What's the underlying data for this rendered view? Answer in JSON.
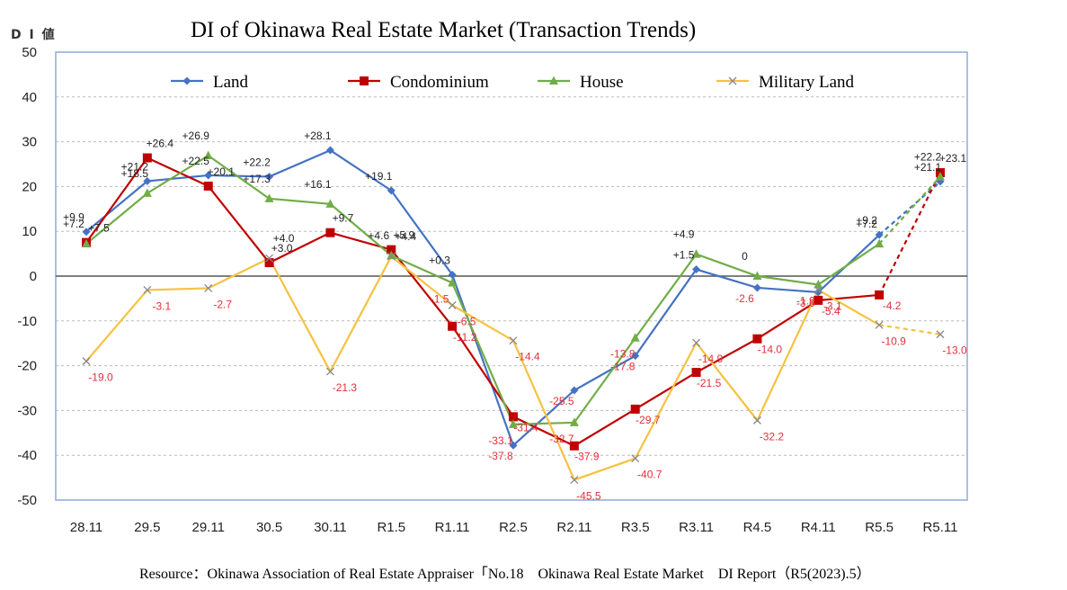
{
  "chart_data": {
    "type": "line",
    "title": "DI of Okinawa Real Estate Market (Transaction Trends)",
    "ylabel": "D I 値",
    "xlabel": "",
    "ylim": [
      -50,
      50
    ],
    "yticks": [
      50,
      40,
      30,
      20,
      10,
      0,
      -10,
      -20,
      -30,
      -40,
      -50
    ],
    "categories": [
      "28.11",
      "29.5",
      "29.11",
      "30.5",
      "30.11",
      "R1.5",
      "R1.11",
      "R2.5",
      "R2.11",
      "R3.5",
      "R3.11",
      "R4.5",
      "R4.11",
      "R5.5",
      "R5.11"
    ],
    "grid": "horizontal dashed",
    "legend_position": "top",
    "series": [
      {
        "name": "Land",
        "color": "#4472c4",
        "marker": "diamond",
        "values": [
          9.9,
          21.2,
          22.5,
          22.2,
          28.1,
          19.1,
          0.3,
          -37.8,
          -25.5,
          -17.8,
          1.5,
          -2.6,
          -3.6,
          9.2,
          21.1
        ],
        "labels": [
          "+9.9",
          "+21.2",
          "+22.5",
          "+22.2",
          "+28.1",
          "+19.1",
          "+0.3",
          "-37.8",
          "-25.5",
          "-17.8",
          "+1.5",
          "-2.6",
          "-3.6",
          "+9.2",
          "+21.1"
        ],
        "forecast_last": true
      },
      {
        "name": "Condominium",
        "color": "#c00000",
        "marker": "square",
        "values": [
          7.5,
          26.4,
          20.1,
          3.0,
          9.7,
          5.9,
          -11.2,
          -31.4,
          -37.9,
          -29.7,
          -21.5,
          -14.0,
          -5.4,
          -4.2,
          23.1
        ],
        "labels": [
          "+7.5",
          "+26.4",
          "+20.1",
          "+3.0",
          "+9.7",
          "+5.9",
          "-11.2",
          "-31.4",
          "-37.9",
          "-29.7",
          "-21.5",
          "-14.0",
          "-5.4",
          "-4.2",
          "+23.1"
        ],
        "forecast_last": true
      },
      {
        "name": "House",
        "color": "#70ad47",
        "marker": "triangle",
        "values": [
          7.2,
          18.5,
          26.9,
          17.3,
          16.1,
          4.6,
          -1.5,
          -33.1,
          -32.7,
          -13.8,
          4.9,
          0,
          -1.9,
          7.2,
          22.2
        ],
        "labels": [
          "+7.2",
          "+18.5",
          "+26.9",
          "+17.3",
          "+16.1",
          "+4.6",
          "-1.5",
          "-33.1",
          "-32.7",
          "-13.8",
          "+4.9",
          "0",
          "-1.9",
          "+7.2",
          "+22.2"
        ],
        "forecast_last": true
      },
      {
        "name": "Military Land",
        "color": "#f5c242",
        "marker": "x",
        "values": [
          -19.0,
          -3.1,
          -2.7,
          4.0,
          -21.3,
          4.4,
          -6.5,
          -14.4,
          -45.5,
          -40.7,
          -14.9,
          -32.2,
          -3.1,
          -10.9,
          -13.0
        ],
        "labels": [
          "-19.0",
          "-3.1",
          "-2.7",
          "+4.0",
          "-21.3",
          "+4.4",
          "-6.5",
          "-14.4",
          "-45.5",
          "-40.7",
          "-14.9",
          "-32.2",
          "-3.1",
          "-10.9",
          "-13.0"
        ],
        "forecast_last": true
      }
    ],
    "source": "Resource：Okinawa Association of Real Estate Appraiser「No.18　Okinawa Real Estate Market　DI Report（R5(2023).5）"
  }
}
